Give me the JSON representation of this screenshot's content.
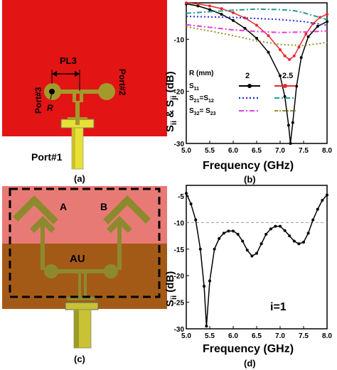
{
  "panels": {
    "a": {
      "caption": "(a)",
      "label_pl3": "PL3",
      "label_port3": "Port#3",
      "label_port2": "Port#2",
      "label_r": "R",
      "label_port1": "Port#1",
      "colors": {
        "substrate": "#e31414",
        "metal": "#a39a2c",
        "connector": "#e8e033"
      }
    },
    "b": {
      "caption": "(b)",
      "ylabel": "S",
      "ylabel_sub1": "ii",
      "ylabel_mid": " & S",
      "ylabel_sub2": "ji",
      "ylabel_unit": " (dB)",
      "xlabel": "Frequency (GHz)",
      "legend": {
        "header": "R (mm)",
        "col1": "2",
        "col2": "2.5",
        "rows": [
          {
            "base": "S",
            "sub": "11"
          },
          {
            "base": "S",
            "sub": "21",
            "eq": "=",
            "base2": "S",
            "sub2": "12"
          },
          {
            "base": "S",
            "sub": "32",
            "eq": "= ",
            "base2": "S",
            "sub2": "23"
          }
        ]
      }
    },
    "c": {
      "caption": "(c)",
      "label_a": "A",
      "label_b": "B",
      "label_au": "AU",
      "colors": {
        "top": "#e87a76",
        "bottom": "#a45a17",
        "metal": "#8d8a2e"
      }
    },
    "d": {
      "caption": "(d)",
      "ylabel": "S",
      "ylabel_sub": "ii",
      "ylabel_unit": " (dB)",
      "xlabel": "Frequency (GHz)",
      "annotation": "i=1"
    }
  },
  "chart_data": [
    {
      "type": "line",
      "panel": "b",
      "xlim": [
        5.0,
        8.0
      ],
      "ylim": [
        -30,
        -3
      ],
      "xticks": [
        "5.0",
        "5.5",
        "6.0",
        "6.5",
        "7.0",
        "7.5",
        "8.0"
      ],
      "yticks": [
        "-10",
        "-20",
        "-30"
      ],
      "series": [
        {
          "color": "#000000",
          "style": "solid-marker",
          "x": [
            5.0,
            5.25,
            5.5,
            5.75,
            6.0,
            6.25,
            6.5,
            6.75,
            7.0,
            7.1,
            7.18,
            7.22,
            7.27,
            7.35,
            7.45,
            7.6,
            7.8,
            8.0
          ],
          "y": [
            -3.2,
            -3.6,
            -4.3,
            -5.2,
            -6.4,
            -7.9,
            -9.8,
            -12.5,
            -17.0,
            -21.0,
            -26.5,
            -30.0,
            -26.0,
            -19.0,
            -13.5,
            -9.5,
            -7.5,
            -6.6
          ]
        },
        {
          "color": "#e8282c",
          "style": "solid-marker",
          "x": [
            5.0,
            5.25,
            5.5,
            5.75,
            6.0,
            6.25,
            6.5,
            6.75,
            7.0,
            7.1,
            7.2,
            7.3,
            7.4,
            7.55,
            7.7,
            7.85,
            8.0
          ],
          "y": [
            -3.0,
            -3.2,
            -3.6,
            -4.1,
            -4.9,
            -5.9,
            -7.3,
            -9.3,
            -12.0,
            -13.2,
            -13.9,
            -13.2,
            -11.5,
            -9.0,
            -7.0,
            -5.8,
            -5.2
          ]
        },
        {
          "color": "#2b2bd9",
          "style": "dotted",
          "x": [
            5.0,
            5.5,
            6.0,
            6.5,
            7.0,
            7.5,
            8.0
          ],
          "y": [
            -5.6,
            -5.7,
            -5.8,
            -6.0,
            -6.2,
            -6.6,
            -7.3
          ]
        },
        {
          "color": "#2a9b94",
          "style": "dashdot",
          "x": [
            5.0,
            5.5,
            6.0,
            6.5,
            7.0,
            7.3,
            7.5,
            8.0
          ],
          "y": [
            -5.0,
            -4.7,
            -4.4,
            -4.2,
            -4.3,
            -4.5,
            -4.9,
            -6.2
          ]
        },
        {
          "color": "#e53fd9",
          "style": "dashdot",
          "x": [
            5.0,
            5.5,
            6.0,
            6.5,
            7.0,
            7.5,
            8.0
          ],
          "y": [
            -7.2,
            -7.7,
            -8.2,
            -8.5,
            -8.7,
            -8.6,
            -8.4
          ]
        },
        {
          "color": "#94912a",
          "style": "dotted",
          "x": [
            5.0,
            5.5,
            6.0,
            6.5,
            7.0,
            7.5,
            8.0
          ],
          "y": [
            -7.6,
            -8.4,
            -9.3,
            -10.3,
            -11.0,
            -11.2,
            -10.6
          ]
        }
      ]
    },
    {
      "type": "line",
      "panel": "d",
      "xlim": [
        5.0,
        8.0
      ],
      "ylim": [
        -30,
        -3
      ],
      "xticks": [
        "5.0",
        "5.5",
        "6.0",
        "6.5",
        "7.0",
        "7.5",
        "8.0"
      ],
      "yticks": [
        "-5",
        "-10",
        "-15",
        "-20",
        "-25",
        "-30"
      ],
      "reference_line_y": -10,
      "series": [
        {
          "color": "#000000",
          "style": "solid-marker",
          "x": [
            5.0,
            5.1,
            5.2,
            5.3,
            5.38,
            5.43,
            5.5,
            5.6,
            5.7,
            5.8,
            5.9,
            6.0,
            6.1,
            6.2,
            6.3,
            6.4,
            6.5,
            6.6,
            6.7,
            6.8,
            6.9,
            7.0,
            7.1,
            7.2,
            7.3,
            7.4,
            7.5,
            7.6,
            7.7,
            7.8,
            7.9,
            8.0
          ],
          "y": [
            -4.5,
            -6.5,
            -9.5,
            -15.0,
            -22.0,
            -29.5,
            -21.0,
            -15.0,
            -13.0,
            -12.0,
            -11.6,
            -11.6,
            -12.2,
            -13.5,
            -15.2,
            -16.3,
            -15.8,
            -14.0,
            -12.2,
            -11.2,
            -10.7,
            -10.7,
            -11.5,
            -12.5,
            -13.5,
            -14.0,
            -13.7,
            -12.0,
            -9.5,
            -7.5,
            -5.8,
            -4.8
          ]
        }
      ]
    }
  ]
}
